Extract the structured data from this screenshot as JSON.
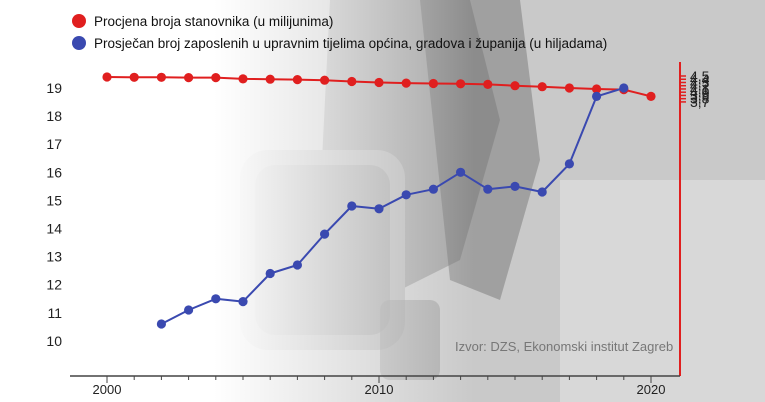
{
  "legend": [
    {
      "label": "Procjena broja stanovnika (u milijunima)",
      "color": "#e01f1f"
    },
    {
      "label": "Prosječan broj zaposlenih u upravnim tijelima općina, gradova i županija (u hiljadama)",
      "color": "#3a49b0"
    }
  ],
  "source": "Izvor: DZS, Ekonomski institut Zagreb",
  "chart_data": {
    "type": "line",
    "title": "",
    "xlabel": "",
    "xlim": [
      1999,
      2021
    ],
    "x_ticks": [
      "2000",
      "2010",
      "2020"
    ],
    "left_axis": {
      "ylim": [
        9.5,
        19.9
      ],
      "ticks": [
        "10",
        "11",
        "12",
        "13",
        "14",
        "15",
        "16",
        "17",
        "18",
        "19"
      ],
      "color": "#3a49b0",
      "label": ""
    },
    "right_axis": {
      "ylim": [
        3.65,
        4.53
      ],
      "ticks": [
        "3,7",
        "3,8",
        "3,9",
        "4,0",
        "4,1",
        "4,2",
        "4,3",
        "4,4",
        "4,5"
      ],
      "color": "#e01f1f",
      "label": ""
    },
    "series": [
      {
        "name": "Procjena broja stanovnika (u milijunima)",
        "axis": "right",
        "color": "#e01f1f",
        "x": [
          2000,
          2001,
          2002,
          2003,
          2004,
          2005,
          2006,
          2007,
          2008,
          2009,
          2010,
          2011,
          2012,
          2013,
          2014,
          2015,
          2016,
          2017,
          2018,
          2019,
          2020
        ],
        "values": [
          4.47,
          4.46,
          4.46,
          4.45,
          4.45,
          4.41,
          4.4,
          4.39,
          4.37,
          4.33,
          4.3,
          4.28,
          4.27,
          4.26,
          4.24,
          4.2,
          4.17,
          4.13,
          4.1,
          4.08,
          3.87
        ]
      },
      {
        "name": "Prosječan broj zaposlenih u upravnim tijelima općina, gradova i županija (u hiljadama)",
        "axis": "left",
        "color": "#3a49b0",
        "x": [
          2002,
          2003,
          2004,
          2005,
          2006,
          2007,
          2008,
          2009,
          2010,
          2011,
          2012,
          2013,
          2014,
          2015,
          2016,
          2017,
          2018,
          2019
        ],
        "values": [
          10.6,
          11.1,
          11.5,
          11.4,
          12.4,
          12.7,
          13.8,
          14.8,
          14.7,
          15.2,
          15.4,
          16.0,
          15.4,
          15.5,
          15.3,
          16.3,
          18.7,
          19.0
        ]
      }
    ]
  }
}
